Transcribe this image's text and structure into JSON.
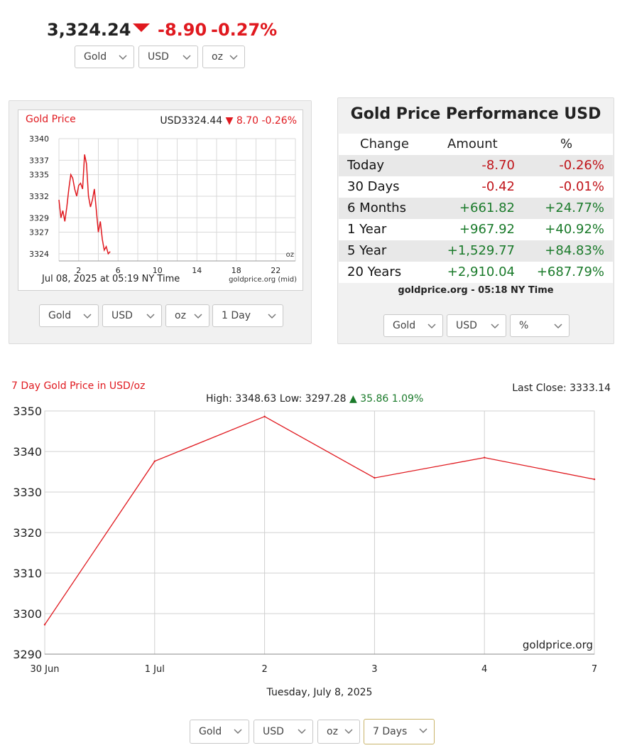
{
  "header": {
    "price": "3,324.24",
    "change": "-8.90",
    "change_pct": "-0.27%",
    "selectors": [
      "Gold",
      "USD",
      "oz"
    ]
  },
  "mini_chart": {
    "label": "Gold Price",
    "ticker_prefix": "USD3324.44",
    "ticker_change": "8.70",
    "ticker_pct": "-0.26%",
    "footer_date": "Jul 08, 2025 at 05:19 NY Time",
    "footer_source": "goldprice.org (mid)",
    "unit_label": "oz",
    "selectors": [
      "Gold",
      "USD",
      "oz",
      "1 Day"
    ]
  },
  "performance": {
    "title": "Gold Price Performance USD",
    "headers": [
      "Change",
      "Amount",
      "%"
    ],
    "rows": [
      {
        "period": "Today",
        "amount": "-8.70",
        "pct": "-0.26%"
      },
      {
        "period": "30 Days",
        "amount": "-0.42",
        "pct": "-0.01%"
      },
      {
        "period": "6 Months",
        "amount": "+661.82",
        "pct": "+24.77%"
      },
      {
        "period": "1 Year",
        "amount": "+967.92",
        "pct": "+40.92%"
      },
      {
        "period": "5 Year",
        "amount": "+1,529.77",
        "pct": "+84.83%"
      },
      {
        "period": "20 Years",
        "amount": "+2,910.04",
        "pct": "+687.79%"
      }
    ],
    "footer": "goldprice.org - 05:18 NY Time",
    "selectors": [
      "Gold",
      "USD",
      "%"
    ]
  },
  "big_chart": {
    "title": "7 Day Gold Price in USD/oz",
    "last_close": "Last Close: 3333.14",
    "high_low": "High: 3348.63 Low: 3297.28",
    "change": "35.86 1.09%",
    "watermark": "goldprice.org",
    "date_label": "Tuesday, July 8, 2025",
    "selectors": [
      "Gold",
      "USD",
      "oz",
      "7 Days"
    ]
  },
  "colors": {
    "red": "#e0191f",
    "dark_red": "#c0141a",
    "green": "#1a7a2a",
    "line": "#e0191f",
    "grid": "#d0d0d0"
  },
  "chart_data": [
    {
      "type": "line",
      "title": "Gold Price",
      "x_ticks": [
        "2",
        "6",
        "10",
        "14",
        "18",
        "22"
      ],
      "y_ticks": [
        3324,
        3327,
        3329,
        3332,
        3335,
        3337,
        3340
      ],
      "ylim": [
        3323,
        3340
      ],
      "xlim": [
        0,
        24
      ],
      "x": [
        0,
        0.2,
        0.4,
        0.6,
        0.8,
        1.0,
        1.2,
        1.4,
        1.6,
        1.8,
        2.0,
        2.2,
        2.4,
        2.6,
        2.8,
        3.0,
        3.2,
        3.4,
        3.6,
        3.8,
        4.0,
        4.2,
        4.4,
        4.6,
        4.8,
        5.0,
        5.2
      ],
      "values": [
        3331.5,
        3329,
        3330,
        3328.5,
        3330.5,
        3333,
        3335,
        3334.5,
        3333,
        3332,
        3333.5,
        3333.8,
        3333,
        3337.8,
        3336.5,
        3332,
        3330.5,
        3331.5,
        3333,
        3330,
        3327,
        3328.5,
        3326,
        3324.5,
        3325,
        3324,
        3324.3
      ],
      "xlabel": "",
      "ylabel": ""
    },
    {
      "type": "line",
      "title": "7 Day Gold Price in USD/oz",
      "categories": [
        "30 Jun",
        "1 Jul",
        "2",
        "3",
        "4",
        "7"
      ],
      "values": [
        3297.28,
        3337.6,
        3348.63,
        3333.5,
        3338.5,
        3333.14
      ],
      "y_ticks": [
        3290,
        3300,
        3310,
        3320,
        3330,
        3340,
        3350
      ],
      "ylim": [
        3290,
        3350
      ],
      "xlabel": "Tuesday, July 8, 2025",
      "ylabel": "",
      "grid": true
    }
  ]
}
